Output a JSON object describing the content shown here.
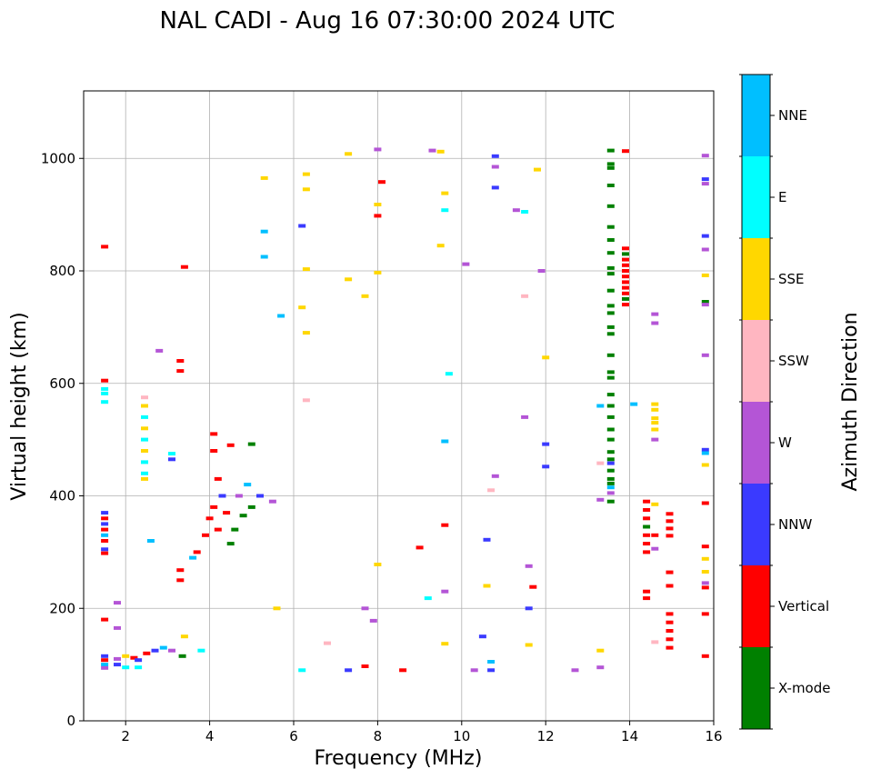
{
  "chart_data": {
    "type": "scatter",
    "title": "NAL CADI - Aug 16 07:30:00 2024 UTC",
    "xlabel": "Frequency (MHz)",
    "ylabel": "Virtual height (km)",
    "xlim": [
      1,
      16
    ],
    "ylim": [
      0,
      1120
    ],
    "xticks": [
      2,
      4,
      6,
      8,
      10,
      12,
      14,
      16
    ],
    "yticks": [
      0,
      200,
      400,
      600,
      800,
      1000
    ],
    "grid": true,
    "colorbar": {
      "title": "Azimuth Direction",
      "categories": [
        {
          "name": "X-mode",
          "color": "#008000"
        },
        {
          "name": "Vertical",
          "color": "#ff0000"
        },
        {
          "name": "NNW",
          "color": "#3a3aff"
        },
        {
          "name": "W",
          "color": "#b455d6"
        },
        {
          "name": "SSW",
          "color": "#ffb6c1"
        },
        {
          "name": "SSE",
          "color": "#ffd700"
        },
        {
          "name": "E",
          "color": "#00ffff"
        },
        {
          "name": "NNE",
          "color": "#00bfff"
        }
      ]
    },
    "echoes": [
      {
        "f": 1.5,
        "h": 843,
        "c": "Vertical"
      },
      {
        "f": 1.5,
        "h": 605,
        "c": "Vertical"
      },
      {
        "f": 1.5,
        "h": 590,
        "c": "E"
      },
      {
        "f": 1.5,
        "h": 582,
        "c": "E"
      },
      {
        "f": 1.5,
        "h": 567,
        "c": "E"
      },
      {
        "f": 1.5,
        "h": 370,
        "c": "NNW"
      },
      {
        "f": 1.5,
        "h": 360,
        "c": "Vertical"
      },
      {
        "f": 1.5,
        "h": 350,
        "c": "NNW"
      },
      {
        "f": 1.5,
        "h": 340,
        "c": "Vertical"
      },
      {
        "f": 1.5,
        "h": 330,
        "c": "NNE"
      },
      {
        "f": 1.5,
        "h": 320,
        "c": "Vertical"
      },
      {
        "f": 1.5,
        "h": 305,
        "c": "NNW"
      },
      {
        "f": 1.5,
        "h": 298,
        "c": "Vertical"
      },
      {
        "f": 1.5,
        "h": 180,
        "c": "Vertical"
      },
      {
        "f": 1.5,
        "h": 115,
        "c": "NNW"
      },
      {
        "f": 1.5,
        "h": 108,
        "c": "Vertical"
      },
      {
        "f": 1.5,
        "h": 100,
        "c": "NNE"
      },
      {
        "f": 1.5,
        "h": 94,
        "c": "W"
      },
      {
        "f": 1.8,
        "h": 110,
        "c": "W"
      },
      {
        "f": 1.8,
        "h": 100,
        "c": "NNW"
      },
      {
        "f": 1.8,
        "h": 210,
        "c": "W"
      },
      {
        "f": 1.8,
        "h": 165,
        "c": "W"
      },
      {
        "f": 2.0,
        "h": 115,
        "c": "SSE"
      },
      {
        "f": 2.0,
        "h": 95,
        "c": "E"
      },
      {
        "f": 2.2,
        "h": 112,
        "c": "Vertical"
      },
      {
        "f": 2.3,
        "h": 108,
        "c": "NNW"
      },
      {
        "f": 2.3,
        "h": 95,
        "c": "E"
      },
      {
        "f": 2.45,
        "h": 575,
        "c": "SSW"
      },
      {
        "f": 2.45,
        "h": 560,
        "c": "SSE"
      },
      {
        "f": 2.45,
        "h": 540,
        "c": "E"
      },
      {
        "f": 2.45,
        "h": 520,
        "c": "SSE"
      },
      {
        "f": 2.45,
        "h": 500,
        "c": "E"
      },
      {
        "f": 2.45,
        "h": 480,
        "c": "SSE"
      },
      {
        "f": 2.45,
        "h": 460,
        "c": "E"
      },
      {
        "f": 2.45,
        "h": 440,
        "c": "E"
      },
      {
        "f": 2.45,
        "h": 430,
        "c": "SSE"
      },
      {
        "f": 2.5,
        "h": 120,
        "c": "Vertical"
      },
      {
        "f": 2.6,
        "h": 320,
        "c": "NNE"
      },
      {
        "f": 2.7,
        "h": 125,
        "c": "NNW"
      },
      {
        "f": 2.8,
        "h": 658,
        "c": "W"
      },
      {
        "f": 2.9,
        "h": 130,
        "c": "NNE"
      },
      {
        "f": 3.1,
        "h": 475,
        "c": "E"
      },
      {
        "f": 3.1,
        "h": 465,
        "c": "NNW"
      },
      {
        "f": 3.1,
        "h": 125,
        "c": "W"
      },
      {
        "f": 3.3,
        "h": 640,
        "c": "Vertical"
      },
      {
        "f": 3.3,
        "h": 622,
        "c": "Vertical"
      },
      {
        "f": 3.3,
        "h": 268,
        "c": "Vertical"
      },
      {
        "f": 3.3,
        "h": 250,
        "c": "Vertical"
      },
      {
        "f": 3.35,
        "h": 115,
        "c": "X-mode"
      },
      {
        "f": 3.4,
        "h": 807,
        "c": "Vertical"
      },
      {
        "f": 3.4,
        "h": 150,
        "c": "SSE"
      },
      {
        "f": 3.6,
        "h": 290,
        "c": "NNE"
      },
      {
        "f": 3.7,
        "h": 300,
        "c": "Vertical"
      },
      {
        "f": 3.8,
        "h": 125,
        "c": "E"
      },
      {
        "f": 3.9,
        "h": 330,
        "c": "Vertical"
      },
      {
        "f": 4.0,
        "h": 360,
        "c": "Vertical"
      },
      {
        "f": 4.1,
        "h": 380,
        "c": "Vertical"
      },
      {
        "f": 4.1,
        "h": 510,
        "c": "Vertical"
      },
      {
        "f": 4.1,
        "h": 480,
        "c": "Vertical"
      },
      {
        "f": 4.2,
        "h": 430,
        "c": "Vertical"
      },
      {
        "f": 4.2,
        "h": 340,
        "c": "Vertical"
      },
      {
        "f": 4.3,
        "h": 400,
        "c": "NNW"
      },
      {
        "f": 4.4,
        "h": 370,
        "c": "Vertical"
      },
      {
        "f": 4.5,
        "h": 315,
        "c": "X-mode"
      },
      {
        "f": 4.5,
        "h": 490,
        "c": "Vertical"
      },
      {
        "f": 4.6,
        "h": 340,
        "c": "X-mode"
      },
      {
        "f": 4.7,
        "h": 400,
        "c": "W"
      },
      {
        "f": 4.8,
        "h": 365,
        "c": "X-mode"
      },
      {
        "f": 4.9,
        "h": 420,
        "c": "NNE"
      },
      {
        "f": 5.0,
        "h": 492,
        "c": "X-mode"
      },
      {
        "f": 5.0,
        "h": 380,
        "c": "X-mode"
      },
      {
        "f": 5.2,
        "h": 400,
        "c": "NNW"
      },
      {
        "f": 5.3,
        "h": 965,
        "c": "SSE"
      },
      {
        "f": 5.3,
        "h": 870,
        "c": "NNE"
      },
      {
        "f": 5.3,
        "h": 825,
        "c": "NNE"
      },
      {
        "f": 5.5,
        "h": 390,
        "c": "W"
      },
      {
        "f": 5.6,
        "h": 200,
        "c": "SSE"
      },
      {
        "f": 5.7,
        "h": 720,
        "c": "NNE"
      },
      {
        "f": 6.2,
        "h": 880,
        "c": "NNW"
      },
      {
        "f": 6.3,
        "h": 972,
        "c": "SSE"
      },
      {
        "f": 6.3,
        "h": 945,
        "c": "SSE"
      },
      {
        "f": 6.3,
        "h": 803,
        "c": "SSE"
      },
      {
        "f": 6.2,
        "h": 735,
        "c": "SSE"
      },
      {
        "f": 6.3,
        "h": 690,
        "c": "SSE"
      },
      {
        "f": 6.3,
        "h": 570,
        "c": "SSW"
      },
      {
        "f": 6.2,
        "h": 90,
        "c": "E"
      },
      {
        "f": 6.8,
        "h": 138,
        "c": "SSW"
      },
      {
        "f": 7.3,
        "h": 1008,
        "c": "SSE"
      },
      {
        "f": 7.3,
        "h": 785,
        "c": "SSE"
      },
      {
        "f": 7.3,
        "h": 90,
        "c": "NNW"
      },
      {
        "f": 7.7,
        "h": 755,
        "c": "SSE"
      },
      {
        "f": 7.7,
        "h": 200,
        "c": "W"
      },
      {
        "f": 7.7,
        "h": 97,
        "c": "Vertical"
      },
      {
        "f": 7.9,
        "h": 178,
        "c": "W"
      },
      {
        "f": 8.0,
        "h": 1016,
        "c": "W"
      },
      {
        "f": 8.1,
        "h": 958,
        "c": "Vertical"
      },
      {
        "f": 8.0,
        "h": 918,
        "c": "SSE"
      },
      {
        "f": 8.0,
        "h": 898,
        "c": "Vertical"
      },
      {
        "f": 8.0,
        "h": 797,
        "c": "SSE"
      },
      {
        "f": 8.0,
        "h": 278,
        "c": "SSE"
      },
      {
        "f": 8.6,
        "h": 90,
        "c": "Vertical"
      },
      {
        "f": 9.0,
        "h": 308,
        "c": "Vertical"
      },
      {
        "f": 9.2,
        "h": 218,
        "c": "E"
      },
      {
        "f": 9.3,
        "h": 1014,
        "c": "W"
      },
      {
        "f": 9.5,
        "h": 1012,
        "c": "SSE"
      },
      {
        "f": 9.5,
        "h": 845,
        "c": "SSE"
      },
      {
        "f": 9.6,
        "h": 938,
        "c": "SSE"
      },
      {
        "f": 9.6,
        "h": 908,
        "c": "E"
      },
      {
        "f": 9.7,
        "h": 617,
        "c": "E"
      },
      {
        "f": 9.6,
        "h": 497,
        "c": "NNE"
      },
      {
        "f": 9.6,
        "h": 348,
        "c": "Vertical"
      },
      {
        "f": 9.6,
        "h": 230,
        "c": "W"
      },
      {
        "f": 9.6,
        "h": 137,
        "c": "SSE"
      },
      {
        "f": 10.1,
        "h": 812,
        "c": "W"
      },
      {
        "f": 10.3,
        "h": 90,
        "c": "W"
      },
      {
        "f": 10.5,
        "h": 150,
        "c": "NNW"
      },
      {
        "f": 10.6,
        "h": 240,
        "c": "SSE"
      },
      {
        "f": 10.7,
        "h": 105,
        "c": "NNE"
      },
      {
        "f": 10.7,
        "h": 90,
        "c": "NNW"
      },
      {
        "f": 10.8,
        "h": 1004,
        "c": "NNW"
      },
      {
        "f": 10.8,
        "h": 985,
        "c": "W"
      },
      {
        "f": 10.8,
        "h": 948,
        "c": "NNW"
      },
      {
        "f": 10.8,
        "h": 435,
        "c": "W"
      },
      {
        "f": 10.7,
        "h": 410,
        "c": "SSW"
      },
      {
        "f": 10.6,
        "h": 322,
        "c": "NNW"
      },
      {
        "f": 11.3,
        "h": 908,
        "c": "W"
      },
      {
        "f": 11.5,
        "h": 905,
        "c": "E"
      },
      {
        "f": 11.5,
        "h": 755,
        "c": "SSW"
      },
      {
        "f": 11.5,
        "h": 540,
        "c": "W"
      },
      {
        "f": 11.6,
        "h": 275,
        "c": "W"
      },
      {
        "f": 11.7,
        "h": 238,
        "c": "Vertical"
      },
      {
        "f": 11.8,
        "h": 980,
        "c": "SSE"
      },
      {
        "f": 11.9,
        "h": 800,
        "c": "W"
      },
      {
        "f": 12.0,
        "h": 646,
        "c": "SSE"
      },
      {
        "f": 12.0,
        "h": 492,
        "c": "NNW"
      },
      {
        "f": 12.0,
        "h": 452,
        "c": "NNW"
      },
      {
        "f": 11.6,
        "h": 135,
        "c": "SSE"
      },
      {
        "f": 11.6,
        "h": 200,
        "c": "NNW"
      },
      {
        "f": 12.7,
        "h": 90,
        "c": "W"
      },
      {
        "f": 13.3,
        "h": 125,
        "c": "SSE"
      },
      {
        "f": 13.3,
        "h": 95,
        "c": "W"
      },
      {
        "f": 13.3,
        "h": 560,
        "c": "NNE"
      },
      {
        "f": 13.3,
        "h": 458,
        "c": "SSW"
      },
      {
        "f": 13.3,
        "h": 393,
        "c": "W"
      },
      {
        "f": 13.55,
        "h": 1014,
        "c": "X-mode"
      },
      {
        "f": 13.55,
        "h": 990,
        "c": "X-mode"
      },
      {
        "f": 13.55,
        "h": 983,
        "c": "X-mode"
      },
      {
        "f": 13.55,
        "h": 952,
        "c": "X-mode"
      },
      {
        "f": 13.55,
        "h": 915,
        "c": "X-mode"
      },
      {
        "f": 13.55,
        "h": 878,
        "c": "X-mode"
      },
      {
        "f": 13.55,
        "h": 855,
        "c": "X-mode"
      },
      {
        "f": 13.55,
        "h": 832,
        "c": "X-mode"
      },
      {
        "f": 13.55,
        "h": 805,
        "c": "X-mode"
      },
      {
        "f": 13.55,
        "h": 795,
        "c": "X-mode"
      },
      {
        "f": 13.55,
        "h": 765,
        "c": "X-mode"
      },
      {
        "f": 13.55,
        "h": 738,
        "c": "X-mode"
      },
      {
        "f": 13.55,
        "h": 725,
        "c": "X-mode"
      },
      {
        "f": 13.55,
        "h": 700,
        "c": "X-mode"
      },
      {
        "f": 13.55,
        "h": 688,
        "c": "X-mode"
      },
      {
        "f": 13.55,
        "h": 650,
        "c": "X-mode"
      },
      {
        "f": 13.55,
        "h": 620,
        "c": "X-mode"
      },
      {
        "f": 13.55,
        "h": 610,
        "c": "X-mode"
      },
      {
        "f": 13.55,
        "h": 580,
        "c": "X-mode"
      },
      {
        "f": 13.55,
        "h": 560,
        "c": "X-mode"
      },
      {
        "f": 13.55,
        "h": 540,
        "c": "X-mode"
      },
      {
        "f": 13.55,
        "h": 518,
        "c": "X-mode"
      },
      {
        "f": 13.55,
        "h": 500,
        "c": "X-mode"
      },
      {
        "f": 13.55,
        "h": 478,
        "c": "X-mode"
      },
      {
        "f": 13.55,
        "h": 465,
        "c": "X-mode"
      },
      {
        "f": 13.55,
        "h": 458,
        "c": "NNW"
      },
      {
        "f": 13.55,
        "h": 445,
        "c": "X-mode"
      },
      {
        "f": 13.55,
        "h": 430,
        "c": "X-mode"
      },
      {
        "f": 13.55,
        "h": 422,
        "c": "X-mode"
      },
      {
        "f": 13.55,
        "h": 415,
        "c": "NNE"
      },
      {
        "f": 13.55,
        "h": 405,
        "c": "W"
      },
      {
        "f": 13.55,
        "h": 390,
        "c": "X-mode"
      },
      {
        "f": 13.9,
        "h": 1013,
        "c": "Vertical"
      },
      {
        "f": 13.9,
        "h": 840,
        "c": "Vertical"
      },
      {
        "f": 13.9,
        "h": 830,
        "c": "X-mode"
      },
      {
        "f": 13.9,
        "h": 820,
        "c": "Vertical"
      },
      {
        "f": 13.9,
        "h": 810,
        "c": "Vertical"
      },
      {
        "f": 13.9,
        "h": 800,
        "c": "Vertical"
      },
      {
        "f": 13.9,
        "h": 790,
        "c": "Vertical"
      },
      {
        "f": 13.9,
        "h": 780,
        "c": "Vertical"
      },
      {
        "f": 13.9,
        "h": 770,
        "c": "Vertical"
      },
      {
        "f": 13.9,
        "h": 760,
        "c": "Vertical"
      },
      {
        "f": 13.9,
        "h": 750,
        "c": "X-mode"
      },
      {
        "f": 13.9,
        "h": 740,
        "c": "Vertical"
      },
      {
        "f": 14.1,
        "h": 563,
        "c": "NNE"
      },
      {
        "f": 14.4,
        "h": 390,
        "c": "Vertical"
      },
      {
        "f": 14.4,
        "h": 375,
        "c": "Vertical"
      },
      {
        "f": 14.4,
        "h": 360,
        "c": "Vertical"
      },
      {
        "f": 14.4,
        "h": 345,
        "c": "X-mode"
      },
      {
        "f": 14.4,
        "h": 330,
        "c": "Vertical"
      },
      {
        "f": 14.4,
        "h": 315,
        "c": "Vertical"
      },
      {
        "f": 14.4,
        "h": 300,
        "c": "Vertical"
      },
      {
        "f": 14.4,
        "h": 230,
        "c": "Vertical"
      },
      {
        "f": 14.4,
        "h": 218,
        "c": "Vertical"
      },
      {
        "f": 14.6,
        "h": 723,
        "c": "W"
      },
      {
        "f": 14.6,
        "h": 707,
        "c": "W"
      },
      {
        "f": 14.6,
        "h": 563,
        "c": "SSE"
      },
      {
        "f": 14.6,
        "h": 553,
        "c": "SSE"
      },
      {
        "f": 14.6,
        "h": 538,
        "c": "SSE"
      },
      {
        "f": 14.6,
        "h": 530,
        "c": "SSE"
      },
      {
        "f": 14.6,
        "h": 518,
        "c": "SSE"
      },
      {
        "f": 14.6,
        "h": 500,
        "c": "W"
      },
      {
        "f": 14.6,
        "h": 385,
        "c": "SSE"
      },
      {
        "f": 14.6,
        "h": 330,
        "c": "Vertical"
      },
      {
        "f": 14.6,
        "h": 306,
        "c": "W"
      },
      {
        "f": 14.6,
        "h": 140,
        "c": "SSW"
      },
      {
        "f": 14.95,
        "h": 368,
        "c": "Vertical"
      },
      {
        "f": 14.95,
        "h": 355,
        "c": "Vertical"
      },
      {
        "f": 14.95,
        "h": 342,
        "c": "Vertical"
      },
      {
        "f": 14.95,
        "h": 329,
        "c": "Vertical"
      },
      {
        "f": 14.95,
        "h": 264,
        "c": "Vertical"
      },
      {
        "f": 14.95,
        "h": 240,
        "c": "Vertical"
      },
      {
        "f": 14.95,
        "h": 190,
        "c": "Vertical"
      },
      {
        "f": 14.95,
        "h": 175,
        "c": "Vertical"
      },
      {
        "f": 14.95,
        "h": 160,
        "c": "Vertical"
      },
      {
        "f": 14.95,
        "h": 145,
        "c": "Vertical"
      },
      {
        "f": 14.95,
        "h": 130,
        "c": "Vertical"
      },
      {
        "f": 15.8,
        "h": 1005,
        "c": "W"
      },
      {
        "f": 15.8,
        "h": 963,
        "c": "NNW"
      },
      {
        "f": 15.8,
        "h": 955,
        "c": "W"
      },
      {
        "f": 15.8,
        "h": 862,
        "c": "NNW"
      },
      {
        "f": 15.8,
        "h": 838,
        "c": "W"
      },
      {
        "f": 15.8,
        "h": 792,
        "c": "SSE"
      },
      {
        "f": 15.8,
        "h": 745,
        "c": "X-mode"
      },
      {
        "f": 15.8,
        "h": 740,
        "c": "W"
      },
      {
        "f": 15.8,
        "h": 650,
        "c": "W"
      },
      {
        "f": 15.8,
        "h": 482,
        "c": "NNW"
      },
      {
        "f": 15.8,
        "h": 476,
        "c": "NNE"
      },
      {
        "f": 15.8,
        "h": 455,
        "c": "SSE"
      },
      {
        "f": 15.8,
        "h": 387,
        "c": "Vertical"
      },
      {
        "f": 15.8,
        "h": 310,
        "c": "Vertical"
      },
      {
        "f": 15.8,
        "h": 288,
        "c": "SSE"
      },
      {
        "f": 15.8,
        "h": 265,
        "c": "SSE"
      },
      {
        "f": 15.8,
        "h": 245,
        "c": "W"
      },
      {
        "f": 15.8,
        "h": 237,
        "c": "Vertical"
      },
      {
        "f": 15.8,
        "h": 190,
        "c": "Vertical"
      },
      {
        "f": 15.8,
        "h": 115,
        "c": "Vertical"
      }
    ]
  }
}
